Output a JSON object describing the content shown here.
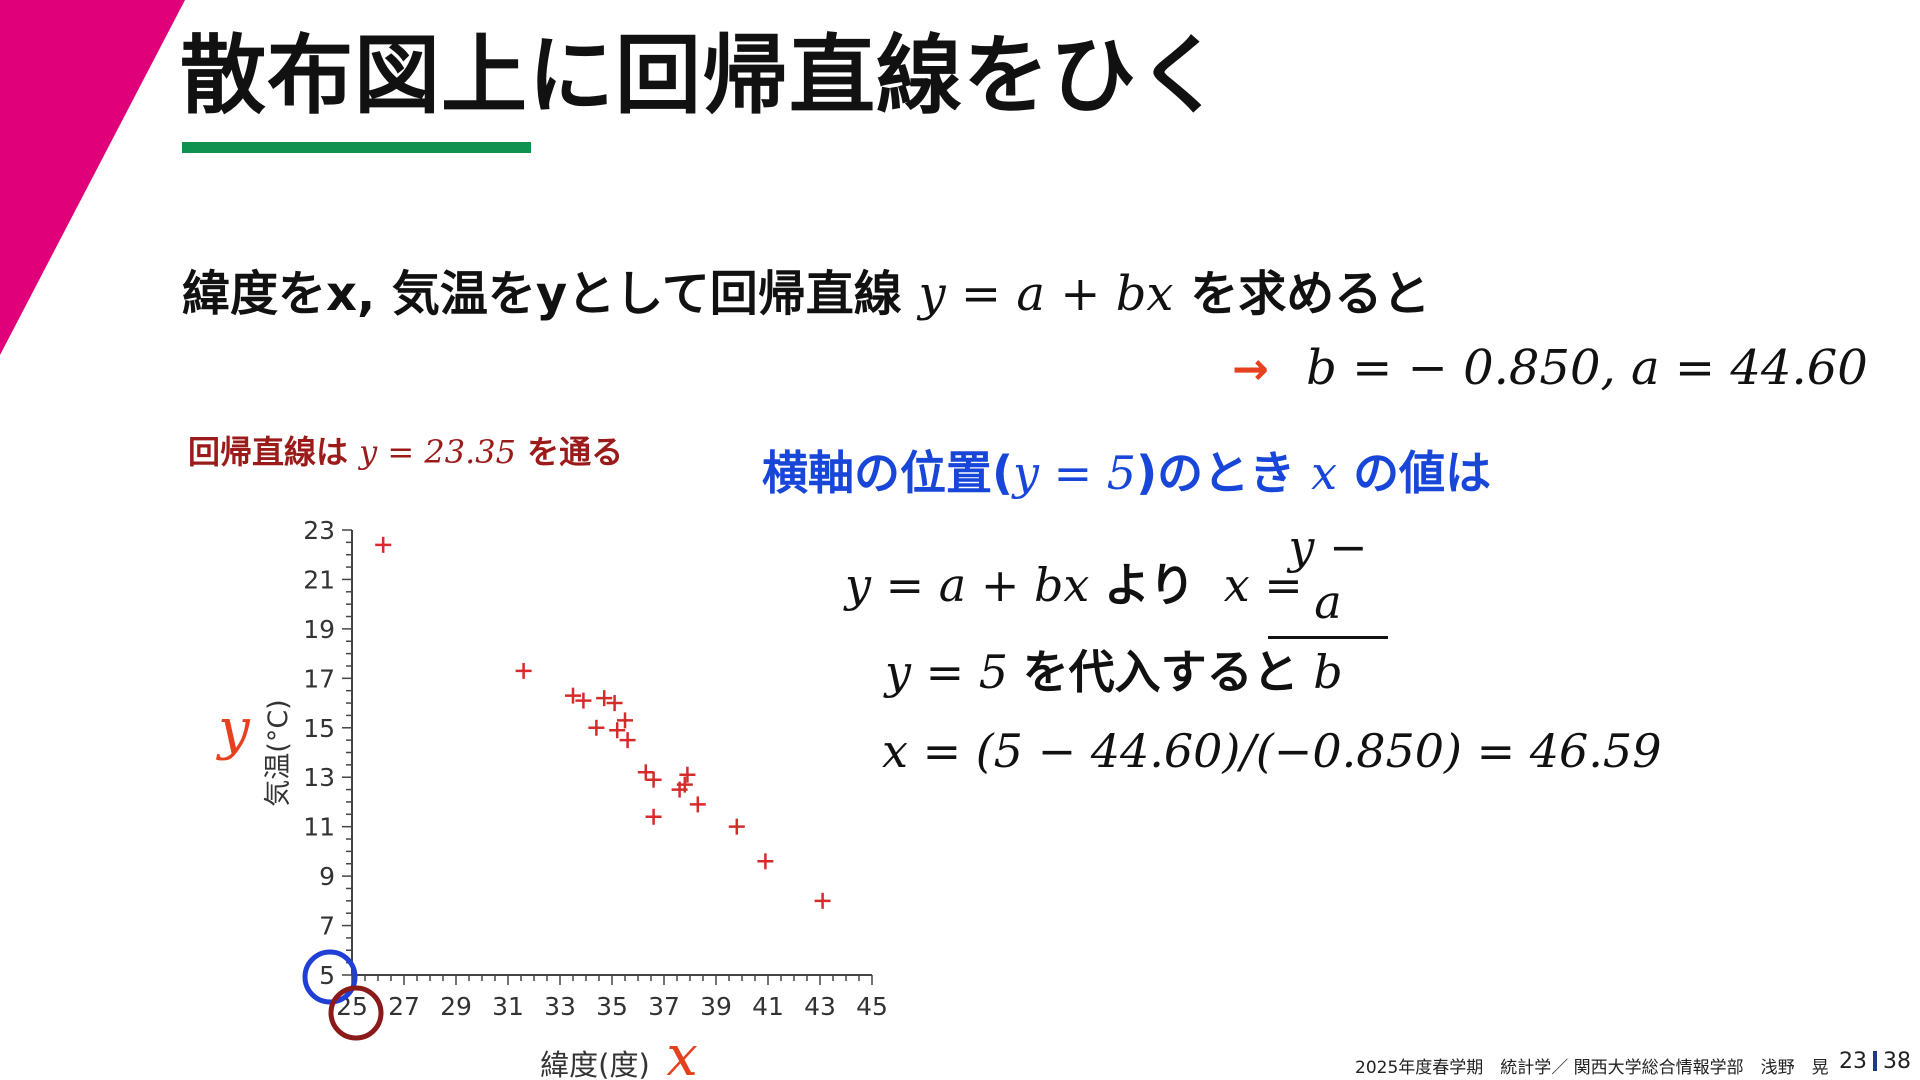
{
  "title": "散布図上に回帰直線をひく",
  "intro": {
    "text": "緯度をx, 気温をyとして回帰直線",
    "formula": "y = a + bx",
    "suffix": "を求めると"
  },
  "result": {
    "arrow": "→",
    "formula": "b = − 0.850,   a = 44.60"
  },
  "note": {
    "prefix": "回帰直線は",
    "formula": "y = 23.35",
    "suffix": "を通る"
  },
  "question": {
    "prefix": "横軸の位置(",
    "formula": "y = 5",
    "middle": ")のとき",
    "var": "x",
    "suffix": "の値は"
  },
  "equation1": {
    "formula": "y = a + bx",
    "text": "より",
    "lhs": "x ="
  },
  "fraction": {
    "numerator": "y − a",
    "denominator": "b"
  },
  "equation2": {
    "formula": "y = 5",
    "text": "を代入すると"
  },
  "equation3": "x = (5 − 44.60)/(−0.850) = 46.59",
  "chart_data": {
    "type": "scatter",
    "xlabel": "緯度(度)",
    "ylabel": "気温(°C)",
    "x_symbol": "x",
    "y_symbol": "y",
    "xlim": [
      25,
      45
    ],
    "ylim": [
      5,
      23
    ],
    "x_ticks": [
      25,
      27,
      29,
      31,
      33,
      35,
      37,
      39,
      41,
      43,
      45
    ],
    "y_ticks": [
      5,
      7,
      9,
      11,
      13,
      15,
      17,
      19,
      21,
      23
    ],
    "points": [
      [
        26.2,
        22.4
      ],
      [
        31.6,
        17.3
      ],
      [
        33.5,
        16.3
      ],
      [
        33.9,
        16.1
      ],
      [
        34.7,
        16.2
      ],
      [
        35.1,
        16.0
      ],
      [
        34.4,
        15.0
      ],
      [
        35.2,
        14.9
      ],
      [
        35.5,
        15.3
      ],
      [
        35.6,
        14.5
      ],
      [
        36.3,
        13.2
      ],
      [
        36.6,
        12.9
      ],
      [
        36.6,
        11.4
      ],
      [
        37.9,
        13.1
      ],
      [
        37.8,
        12.7
      ],
      [
        37.6,
        12.5
      ],
      [
        38.3,
        11.9
      ],
      [
        39.8,
        11.0
      ],
      [
        40.9,
        9.6
      ],
      [
        43.1,
        8.0
      ]
    ],
    "marker_color": "#d62b2b",
    "highlight_x_circle_color": "#8b1a1a",
    "highlight_y_circle_color": "#1f3fd6"
  },
  "footer": "2025年度春学期　統計学／ 関西大学総合情報学部　浅野　晃",
  "page": {
    "current": "23",
    "total": "38"
  },
  "colors": {
    "accent_magenta": "#e0007a",
    "underline_green": "#0f9150",
    "note_red": "#9b1b1b",
    "question_blue": "#1746d9",
    "arrow_red": "#e6401e"
  }
}
